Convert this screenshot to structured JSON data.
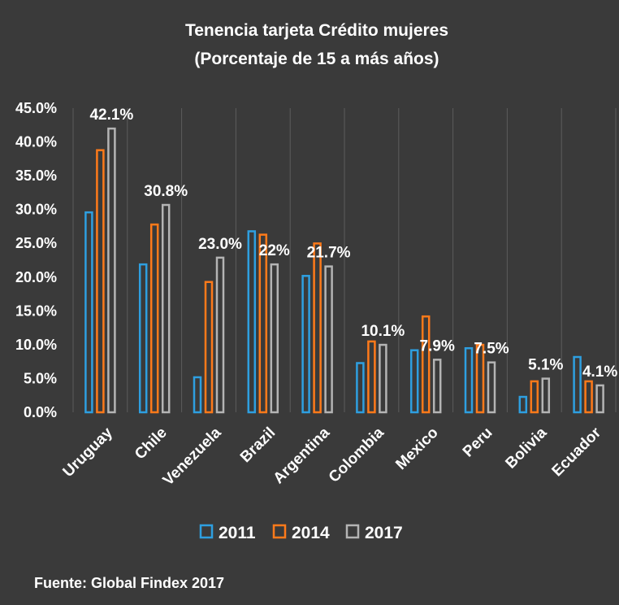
{
  "colors": {
    "background": "#3a3a3a",
    "series_2011": "#2e9fe0",
    "series_2014": "#ff7a1a",
    "series_2017": "#b4b4b4"
  },
  "chart_data": {
    "type": "bar",
    "title": "Tenencia tarjeta Crédito mujeres",
    "subtitle": "(Porcentaje de 15 a más años)",
    "xlabel": "",
    "ylabel": "",
    "ylim": [
      0,
      45
    ],
    "yticks": [
      "0.0%",
      "5.0%",
      "10.0%",
      "15.0%",
      "20.0%",
      "25.0%",
      "30.0%",
      "35.0%",
      "40.0%",
      "45.0%"
    ],
    "grid": "vertical",
    "legend": "bottom",
    "categories": [
      "Uruguay",
      "Chile",
      "Venezuela",
      "Brazil",
      "Argentina",
      "Colombia",
      "Mexico",
      "Peru",
      "Bolivia",
      "Ecuador"
    ],
    "series": [
      {
        "name": "2011",
        "values": [
          29.7,
          22.0,
          5.3,
          26.9,
          20.3,
          7.4,
          9.3,
          9.6,
          2.4,
          8.3
        ]
      },
      {
        "name": "2014",
        "values": [
          38.9,
          27.9,
          19.4,
          26.4,
          25.1,
          10.6,
          14.3,
          10.1,
          4.7,
          4.7
        ]
      },
      {
        "name": "2017",
        "values": [
          42.1,
          30.8,
          23.0,
          22.0,
          21.7,
          10.1,
          7.9,
          7.5,
          5.1,
          4.1
        ]
      }
    ],
    "data_labels": [
      "42.1%",
      "30.8%",
      "23.0%",
      "22%",
      "21.7%",
      "10.1%",
      "7.9%",
      "7.5%",
      "5.1%",
      "4.1%"
    ]
  },
  "source": "Fuente: Global Findex 2017"
}
